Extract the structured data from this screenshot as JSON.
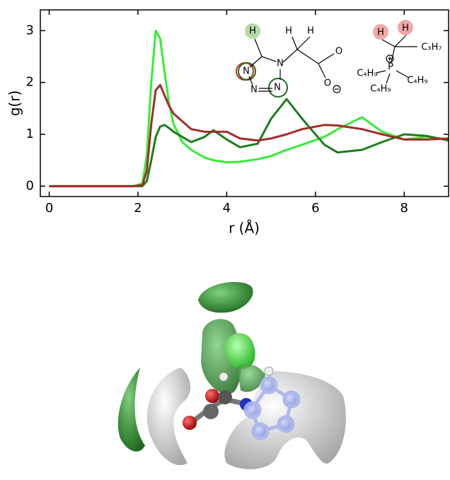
{
  "chart_data": {
    "type": "line",
    "xlabel": "r (Å)",
    "ylabel": "g(r)",
    "x": [
      0,
      1.9,
      2.1,
      2.2,
      2.3,
      2.4,
      2.5,
      2.6,
      2.7,
      2.8,
      3.0,
      3.2,
      3.5,
      3.7,
      4.0,
      4.3,
      4.7,
      5.0,
      5.35,
      5.7,
      6.2,
      6.5,
      7.05,
      7.5,
      8.0,
      8.5,
      9.0
    ],
    "series": [
      {
        "color": "#33ee33",
        "values": [
          0,
          0,
          0.05,
          0.6,
          2.0,
          3.0,
          2.85,
          2.2,
          1.6,
          1.2,
          0.85,
          0.7,
          0.55,
          0.5,
          0.46,
          0.47,
          0.52,
          0.58,
          0.7,
          0.8,
          0.95,
          1.1,
          1.33,
          1.05,
          0.9,
          0.95,
          0.9
        ]
      },
      {
        "color": "#1b7d1b",
        "values": [
          0,
          0,
          0,
          0.1,
          0.5,
          0.95,
          1.15,
          1.18,
          1.12,
          1.05,
          0.95,
          0.85,
          0.95,
          1.08,
          0.9,
          0.75,
          0.82,
          1.3,
          1.68,
          1.3,
          0.8,
          0.65,
          0.7,
          0.85,
          1.0,
          0.97,
          0.88
        ]
      },
      {
        "color": "#a52a2a",
        "values": [
          0,
          0,
          0.02,
          0.3,
          1.2,
          1.85,
          1.95,
          1.75,
          1.55,
          1.4,
          1.25,
          1.1,
          1.05,
          1.05,
          1.05,
          0.92,
          0.88,
          0.92,
          1.0,
          1.1,
          1.18,
          1.17,
          1.1,
          1.0,
          0.9,
          0.9,
          0.92
        ]
      }
    ],
    "xlim": [
      -0.2,
      9
    ],
    "ylim": [
      -0.2,
      3.4
    ],
    "xticks": [
      0,
      2,
      4,
      6,
      8
    ],
    "yticks": [
      0,
      1,
      2,
      3
    ],
    "structure_labels": [
      "H",
      "H",
      "H",
      "N",
      "N",
      "N",
      "N",
      "O",
      "O",
      "H",
      "H",
      "C₃H₇",
      "C₄H₉",
      "P",
      "C₄H₉",
      "C₄H₉"
    ]
  }
}
